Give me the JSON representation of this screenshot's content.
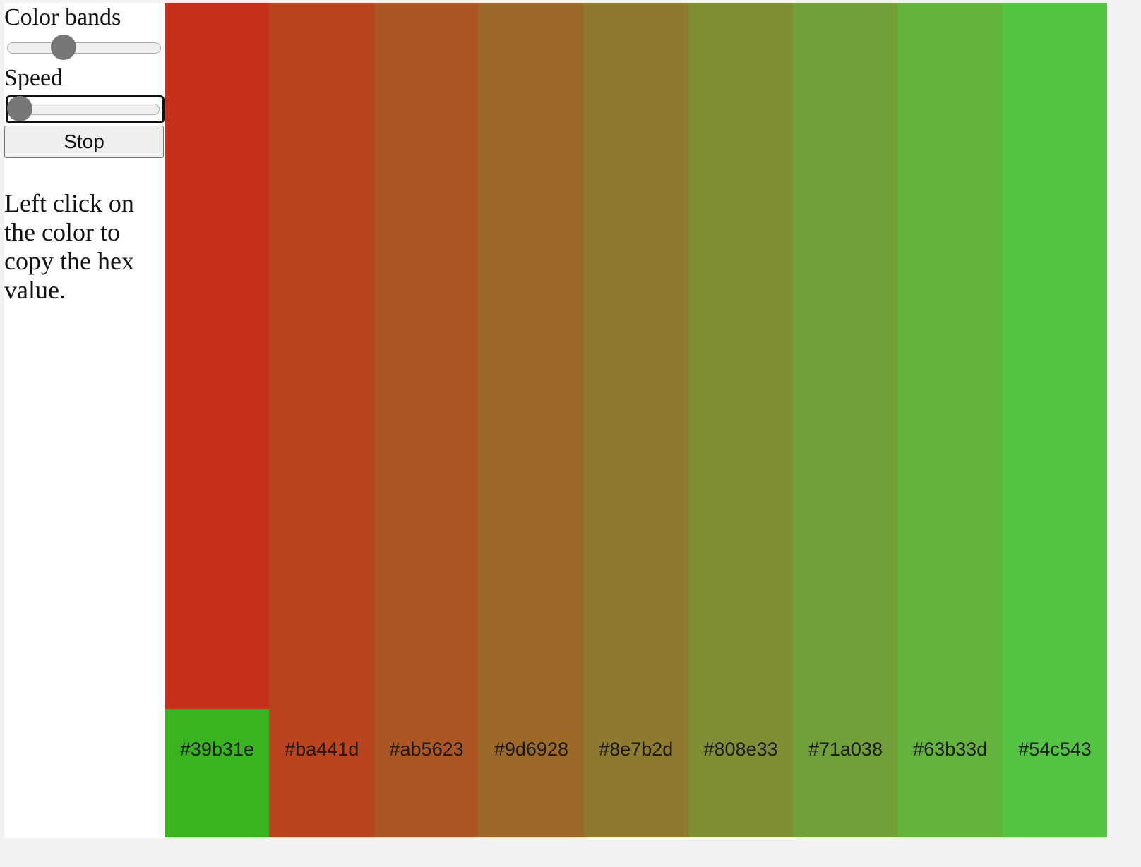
{
  "controls": {
    "color_bands_label": "Color bands",
    "speed_label": "Speed",
    "stop_button": "Stop"
  },
  "instructions": "Left click on the color to copy the hex value.",
  "bands": [
    "#39b31e",
    "#ba441d",
    "#ab5623",
    "#9d6928",
    "#8e7b2d",
    "#808e33",
    "#71a038",
    "#63b33d",
    "#54c543"
  ]
}
